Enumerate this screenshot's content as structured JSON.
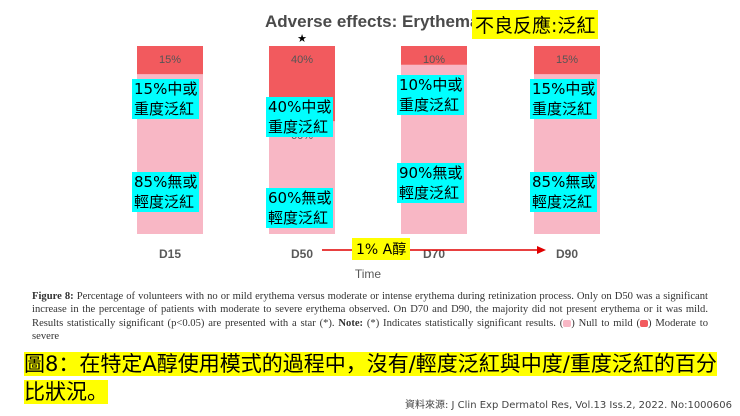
{
  "title": {
    "chart_title": "Adverse effects: Erythema",
    "zh_title": "不良反應:泛紅"
  },
  "chart_data": {
    "type": "bar",
    "stacked": true,
    "categories": [
      "D15",
      "D50",
      "D70",
      "D90"
    ],
    "series": [
      {
        "name": "Null to mild",
        "values": [
          85,
          60,
          90,
          85
        ],
        "color": "#f8b7c5"
      },
      {
        "name": "Moderate to severe",
        "values": [
          15,
          40,
          10,
          15
        ],
        "color": "#f25a5e"
      }
    ],
    "ylim": [
      0,
      100
    ],
    "xlabel": "Time",
    "significant_star": {
      "category": "D50",
      "symbol": "★"
    },
    "value_labels": {
      "moderate": [
        "15%",
        "40%",
        "10%",
        "15%"
      ],
      "mild": [
        "85%",
        "60%",
        "90%",
        "85%"
      ]
    }
  },
  "annotations": {
    "moderate": [
      {
        "l1": "15%中或",
        "l2": "重度泛紅"
      },
      {
        "l1": "40%中或",
        "l2": "重度泛紅"
      },
      {
        "l1": "10%中或",
        "l2": "重度泛紅"
      },
      {
        "l1": "15%中或",
        "l2": "重度泛紅"
      }
    ],
    "mild": [
      {
        "l1": "85%無或",
        "l2": "輕度泛紅"
      },
      {
        "l1": "60%無或",
        "l2": "輕度泛紅"
      },
      {
        "l1": "90%無或",
        "l2": "輕度泛紅"
      },
      {
        "l1": "85%無或",
        "l2": "輕度泛紅"
      }
    ],
    "arrow_label": "1% A醇"
  },
  "caption": {
    "label": "Figure 8:",
    "text1": " Percentage of volunteers with no or mild erythema versus moderate or intense erythema during retinization process. Only on D50 was a significant increase in the percentage of patients with moderate to severe erythema observed. On D70 and D90, the majority did not present erythema or it was mild. Results statistically significant (p<0.05) are presented with a star (*). ",
    "note_label": "Note:",
    "text2": " (*) Indicates statistically significant results. (",
    "text3": ") Null to mild (",
    "text4": ") Moderate to severe",
    "mild_color": "#f8b7c5",
    "moderate_color": "#f25a5e"
  },
  "zh_caption": "圖8：在特定A醇使用模式的過程中，沒有/輕度泛紅與中度/重度泛紅的百分比狀況。",
  "source": "資料來源: J Clin Exp Dermatol Res, Vol.13 Iss.2, 2022. No:1000606"
}
